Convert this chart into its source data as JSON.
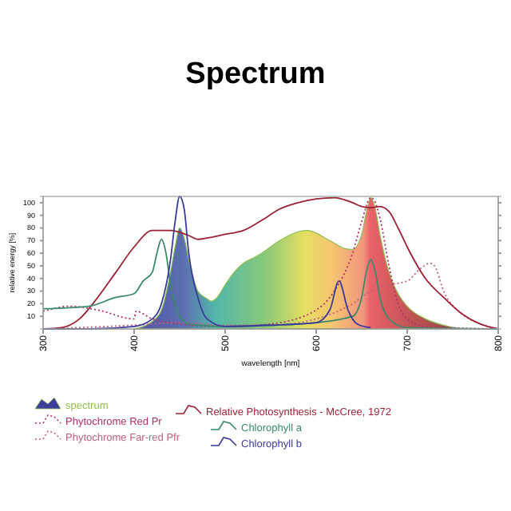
{
  "chart_data": {
    "type": "area",
    "title": "Spectrum",
    "xlabel": "wavelength [nm]",
    "ylabel": "relative energy [%]",
    "xlim": [
      300,
      800
    ],
    "xticks": [
      300,
      400,
      500,
      600,
      700,
      800
    ],
    "ylim": [
      0,
      105
    ],
    "yticks": [
      10,
      20,
      30,
      40,
      50,
      60,
      70,
      80,
      90,
      100
    ],
    "legend": "bottom",
    "marker": "none",
    "series": [
      {
        "name": "spectrum",
        "color": "#8fbf50",
        "x": [
          400,
          410,
          420,
          430,
          440,
          445,
          450,
          455,
          460,
          470,
          480,
          485,
          490,
          500,
          510,
          520,
          530,
          540,
          550,
          560,
          570,
          580,
          590,
          600,
          610,
          620,
          630,
          640,
          650,
          655,
          660,
          665,
          670,
          680,
          690,
          700,
          720,
          740,
          760
        ],
        "values": [
          0,
          2,
          6,
          15,
          45,
          65,
          80,
          72,
          55,
          30,
          24,
          22,
          24,
          35,
          45,
          52,
          56,
          60,
          65,
          70,
          74,
          77,
          78,
          76,
          72,
          68,
          64,
          63,
          75,
          92,
          104,
          95,
          75,
          45,
          28,
          18,
          8,
          3,
          0
        ]
      },
      {
        "name": "Phytochrome Red Pr",
        "type": "line",
        "line_style": "dotted",
        "color": "#b0306a",
        "x": [
          300,
          330,
          360,
          400,
          402,
          420,
          440,
          460,
          500,
          550,
          600,
          620,
          640,
          650,
          660,
          665,
          670,
          680,
          690,
          700,
          720,
          800
        ],
        "values": [
          14,
          18,
          15,
          8,
          14,
          8,
          5,
          3,
          2,
          4,
          15,
          30,
          60,
          85,
          104,
          100,
          88,
          50,
          20,
          8,
          2,
          0
        ]
      },
      {
        "name": "Phytochrome Far-red Pfr",
        "type": "line",
        "line_style": "dotted",
        "color": "#c0607f",
        "x": [
          300,
          400,
          450,
          500,
          550,
          600,
          640,
          660,
          680,
          700,
          715,
          725,
          730,
          740,
          760,
          780,
          800
        ],
        "values": [
          0,
          3,
          5,
          3,
          3,
          8,
          20,
          30,
          35,
          38,
          48,
          52,
          50,
          30,
          12,
          4,
          0
        ]
      },
      {
        "name": "Relative Photosynthesis - McCree, 1972",
        "type": "line",
        "line_style": "solid",
        "color": "#9b2335",
        "x": [
          300,
          320,
          340,
          360,
          380,
          400,
          420,
          440,
          460,
          470,
          480,
          500,
          520,
          540,
          560,
          580,
          600,
          620,
          640,
          650,
          660,
          670,
          680,
          690,
          700,
          720,
          740,
          760,
          780,
          800
        ],
        "values": [
          0,
          1,
          8,
          25,
          45,
          65,
          78,
          78,
          74,
          71,
          72,
          75,
          78,
          86,
          95,
          100,
          103,
          104,
          100,
          97,
          96,
          97,
          93,
          80,
          65,
          40,
          25,
          12,
          4,
          0
        ]
      },
      {
        "name": "Chlorophyll a",
        "type": "line",
        "line_style": "solid",
        "color": "#3a8a6a",
        "x": [
          300,
          350,
          380,
          400,
          410,
          420,
          425,
          430,
          435,
          440,
          450,
          460,
          500,
          550,
          600,
          640,
          650,
          655,
          660,
          665,
          670,
          680,
          700,
          800
        ],
        "values": [
          16,
          18,
          25,
          28,
          38,
          45,
          60,
          71,
          60,
          35,
          10,
          4,
          2,
          3,
          5,
          10,
          25,
          45,
          55,
          45,
          25,
          8,
          1,
          0
        ]
      },
      {
        "name": "Chlorophyll b",
        "type": "line",
        "line_style": "solid",
        "color": "#3a3a9a",
        "x": [
          300,
          350,
          400,
          420,
          430,
          440,
          445,
          450,
          455,
          460,
          470,
          480,
          500,
          550,
          600,
          615,
          625,
          635,
          645,
          660
        ],
        "values": [
          0,
          0,
          2,
          8,
          20,
          55,
          85,
          105,
          95,
          60,
          25,
          8,
          2,
          3,
          5,
          15,
          38,
          15,
          4,
          1
        ]
      }
    ]
  }
}
